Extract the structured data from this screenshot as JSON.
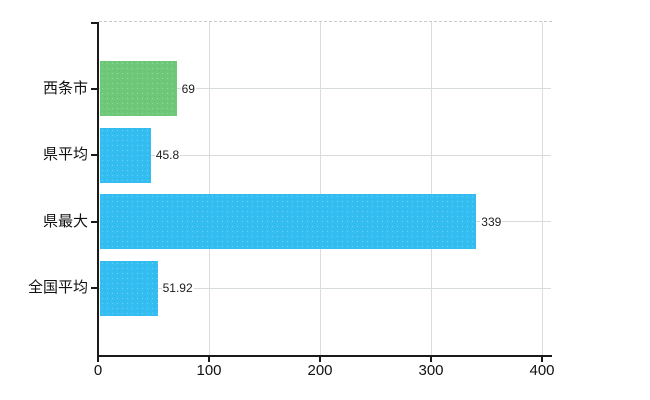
{
  "chart_data": {
    "type": "bar",
    "orientation": "horizontal",
    "title": "",
    "categories": [
      "西条市",
      "県平均",
      "県最大",
      "全国平均"
    ],
    "values": [
      69,
      45.8,
      339,
      51.92
    ],
    "value_labels": [
      "69",
      "45.8",
      "339",
      "51.92"
    ],
    "bar_colors": [
      "#6dc878",
      "#34bdf0",
      "#34bdf0",
      "#34bdf0"
    ],
    "xlabel": "",
    "ylabel": "",
    "xlim": [
      0,
      400
    ],
    "x_ticks": [
      0,
      100,
      200,
      300,
      400
    ],
    "grid": true,
    "legend": false,
    "colors": {
      "axis": "#1a1a1a",
      "gridline": "#dcdcdc",
      "top_border": "#c9c9c9",
      "background": "#ffffff"
    }
  }
}
